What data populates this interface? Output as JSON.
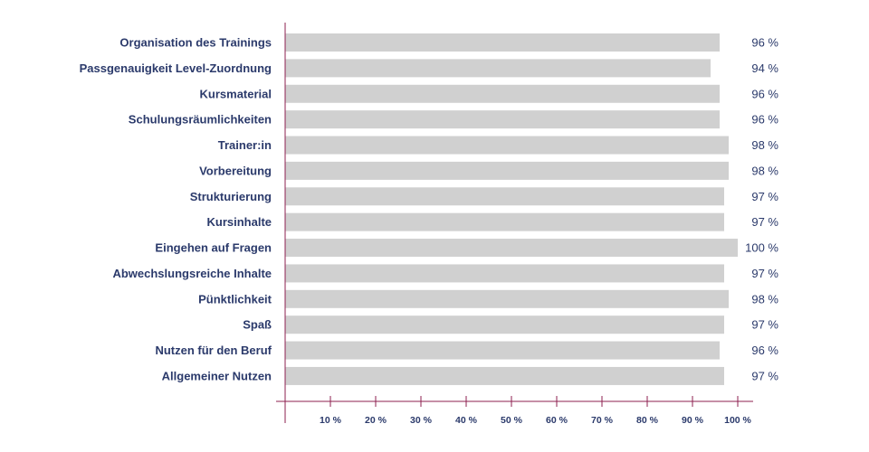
{
  "chart_data": {
    "type": "bar",
    "orientation": "horizontal",
    "categories": [
      "Organisation des Trainings",
      "Passgenauigkeit Level-Zuordnung",
      "Kursmaterial",
      "Schulungsräumlichkeiten",
      "Trainer:in",
      "Vorbereitung",
      "Strukturierung",
      "Kursinhalte",
      "Eingehen auf Fragen",
      "Abwechslungsreiche Inhalte",
      "Pünktlichkeit",
      "Spaß",
      "Nutzen für den Beruf",
      "Allgemeiner Nutzen"
    ],
    "values": [
      96,
      94,
      96,
      96,
      98,
      98,
      97,
      97,
      100,
      97,
      98,
      97,
      96,
      97
    ],
    "value_labels": [
      "96 %",
      "94 %",
      "96 %",
      "96 %",
      "98 %",
      "98 %",
      "97 %",
      "97 %",
      "100 %",
      "97 %",
      "98 %",
      "97 %",
      "96 %",
      "97 %"
    ],
    "ticks": [
      10,
      20,
      30,
      40,
      50,
      60,
      70,
      80,
      90,
      100
    ],
    "tick_labels": [
      "10 %",
      "20 %",
      "30 %",
      "40 %",
      "50 %",
      "60 %",
      "70 %",
      "80 %",
      "90 %",
      "100 %"
    ],
    "xlim": [
      0,
      100
    ],
    "grid": false,
    "colors": {
      "bar": "#d0d0d0",
      "axis": "#8e1f4f",
      "text": "#2b3a6b"
    }
  }
}
